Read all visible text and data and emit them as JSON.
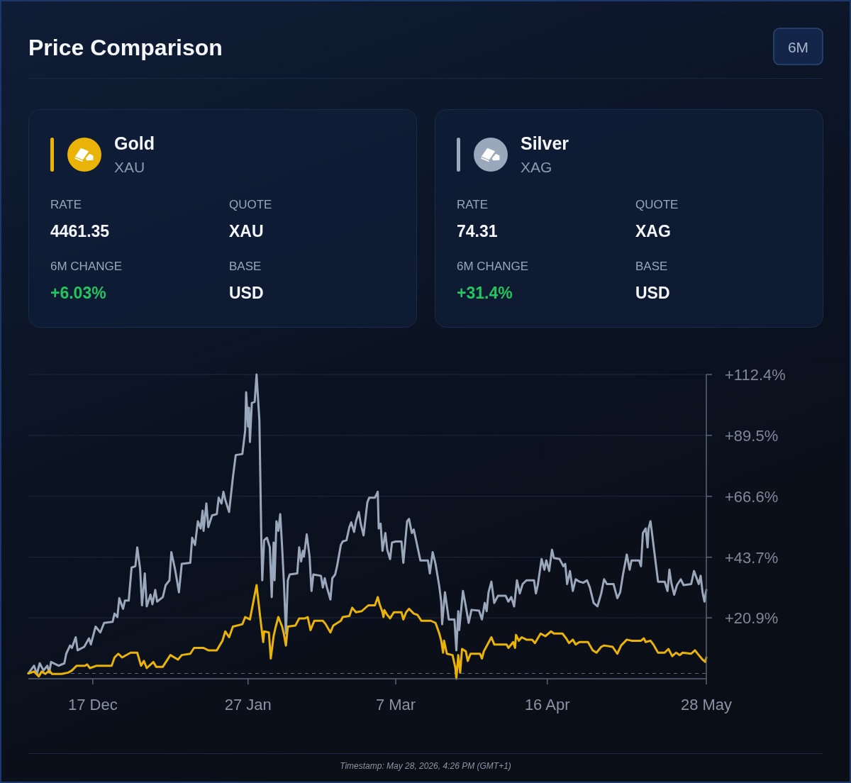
{
  "chart_data": {
    "type": "line",
    "title": "Price Comparison",
    "annotations": [
      "6M",
      "XAU",
      "RATE",
      "4461.35",
      "QUOTE",
      "XAU",
      "6M CHANGE",
      "+6.03%",
      "BASE",
      "USD",
      "XAG",
      "RATE",
      "74.31",
      "QUOTE",
      "XAG",
      "6M CHANGE",
      "+31.4%",
      "BASE",
      "USD",
      "Timestamp: May 28, 2026, 4:26 PM (GMT+1)"
    ],
    "xlim": [
      "2025-11-30",
      "2026-05-28"
    ],
    "xticks": [
      {
        "value": "2025-12-17",
        "label": "17 Dec"
      },
      {
        "value": "2026-01-27",
        "label": "27 Jan"
      },
      {
        "value": "2026-03-07",
        "label": "7 Mar"
      },
      {
        "value": "2026-04-16",
        "label": "16 Apr"
      },
      {
        "value": "2026-05-28",
        "label": "28 May"
      }
    ],
    "ylim": [
      -2.0,
      112.4
    ],
    "yticks": [
      {
        "value": 20.9,
        "label": "+20.9%"
      },
      {
        "value": 43.7,
        "label": "+43.7%"
      },
      {
        "value": 66.6,
        "label": "+66.6%"
      },
      {
        "value": 89.5,
        "label": "+89.5%"
      },
      {
        "value": 112.4,
        "label": "+112.4%"
      }
    ],
    "grid": "y",
    "legend": "top",
    "ref_lines": [
      {
        "axis": "y",
        "value": 0,
        "color": "#5d6678",
        "line_style": "dashed"
      }
    ],
    "series": [
      {
        "name": "Gold",
        "color": "#eab308",
        "x": [
          "2025-11-30",
          "2025-12-01T12:00",
          "2025-12-02T18:00",
          "2025-12-03T12:00",
          "2025-12-04T12:00",
          "2025-12-05T12:00",
          "2025-12-06T06:00",
          "2025-12-08T18:00",
          "2025-12-10T12:00",
          "2025-12-11T12:00",
          "2025-12-12T18:00",
          "2025-12-15",
          "2025-12-15T12:00",
          "2025-12-16T06:00",
          "2025-12-18",
          "2025-12-19T18:00",
          "2025-12-22",
          "2025-12-22T18:00",
          "2025-12-23T18:00",
          "2025-12-24T18:00",
          "2025-12-27",
          "2025-12-28T18:00",
          "2025-12-29T18:00",
          "2025-12-30T12:00",
          "2025-12-31T06:00",
          "2026-01-02",
          "2026-01-02T18:00",
          "2026-01-04T12:00",
          "2026-01-06T12:00",
          "2026-01-08T12:00",
          "2026-01-09T12:00",
          "2026-01-11T18:00",
          "2026-01-12T18:00",
          "2026-01-15T06:00",
          "2026-01-16T12:00",
          "2026-01-18T18:00",
          "2026-01-20T06:00",
          "2026-01-21",
          "2026-01-22",
          "2026-01-23",
          "2026-01-25T12:00",
          "2026-01-26T06:00",
          "2026-01-27T12:00",
          "2026-01-29T06:00",
          "2026-01-30T06:00",
          "2026-01-31",
          "2026-01-31T06:00",
          "2026-02-01T12:00",
          "2026-02-02",
          "2026-02-02T18:00",
          "2026-02-03T06:00",
          "2026-02-04",
          "2026-02-05",
          "2026-02-05T12:00",
          "2026-02-06",
          "2026-02-06T12:00",
          "2026-02-08T12:00",
          "2026-02-09T12:00",
          "2026-02-11",
          "2026-02-11T18:00",
          "2026-02-12T12:00",
          "2026-02-13T12:00",
          "2026-02-15T18:00",
          "2026-02-16T12:00",
          "2026-02-17T18:00",
          "2026-02-18T12:00",
          "2026-02-20T12:00",
          "2026-02-21",
          "2026-02-22T18:00",
          "2026-02-23T12:00",
          "2026-02-24T12:00",
          "2026-02-26",
          "2026-02-27T18:00",
          "2026-03-01T12:00",
          "2026-03-02T06:00",
          "2026-03-02T18:00",
          "2026-03-03T12:00",
          "2026-03-03T18:00",
          "2026-03-04",
          "2026-03-04T18:00",
          "2026-03-05T12:00",
          "2026-03-06T12:00",
          "2026-03-08T12:00",
          "2026-03-09",
          "2026-03-09T18:00",
          "2026-03-10T12:00",
          "2026-03-11T18:00",
          "2026-03-12T18:00",
          "2026-03-13T18:00",
          "2026-03-16T06:00",
          "2026-03-17T12:00",
          "2026-03-18T12:00",
          "2026-03-19",
          "2026-03-19T12:00",
          "2026-03-19T18:00",
          "2026-03-20T12:00",
          "2026-03-22",
          "2026-03-22T18:00",
          "2026-03-23",
          "2026-03-23T12:00",
          "2026-03-24",
          "2026-03-24T12:00",
          "2026-03-25T12:00",
          "2026-03-26",
          "2026-03-26T18:00",
          "2026-03-29T06:00",
          "2026-03-29T18:00",
          "2026-03-30T06:00",
          "2026-03-30T18:00",
          "2026-04-01T06:00",
          "2026-04-02",
          "2026-04-05T06:00",
          "2026-04-05T18:00",
          "2026-04-07",
          "2026-04-07T12:00",
          "2026-04-07T18:00",
          "2026-04-08T12:00",
          "2026-04-09T06:00",
          "2026-04-10T12:00",
          "2026-04-12",
          "2026-04-12T18:00",
          "2026-04-14T06:00",
          "2026-04-15T12:00",
          "2026-04-17",
          "2026-04-17T18:00",
          "2026-04-20",
          "2026-04-21",
          "2026-04-21T18:00",
          "2026-04-22T18:00",
          "2026-04-23T12:00",
          "2026-04-24T12:00",
          "2026-04-26T18:00",
          "2026-04-28",
          "2026-04-29",
          "2026-04-30T06:00",
          "2026-05-01",
          "2026-05-03T06:00",
          "2026-05-04T12:00",
          "2026-05-05T12:00",
          "2026-05-07",
          "2026-05-08T06:00",
          "2026-05-10T18:00",
          "2026-05-11T12:00",
          "2026-05-12",
          "2026-05-13T06:00",
          "2026-05-14",
          "2026-05-15T06:00",
          "2026-05-17",
          "2026-05-18",
          "2026-05-19",
          "2026-05-20",
          "2026-05-21",
          "2026-05-21T18:00",
          "2026-05-24",
          "2026-05-25",
          "2026-05-26",
          "2026-05-27",
          "2026-05-27T18:00",
          "2026-05-28"
        ],
        "values": [
          0.0,
          0.7,
          -1.1,
          0.7,
          -0.2,
          1.1,
          -0.2,
          -0.2,
          0.3,
          1.1,
          2.9,
          2.9,
          3.4,
          2.0,
          2.9,
          2.9,
          2.9,
          6.0,
          7.4,
          6.0,
          7.8,
          7.8,
          2.9,
          4.7,
          2.0,
          4.3,
          2.5,
          2.5,
          6.9,
          5.2,
          6.9,
          7.4,
          9.6,
          9.6,
          8.7,
          8.7,
          12.3,
          15.8,
          13.6,
          17.6,
          18.5,
          21.2,
          20.3,
          33.2,
          20.7,
          11.8,
          15.8,
          15.4,
          5.6,
          14.0,
          17.2,
          21.2,
          17.6,
          14.5,
          10.5,
          17.6,
          18.0,
          20.7,
          20.7,
          21.2,
          16.3,
          19.8,
          19.8,
          18.5,
          15.4,
          18.0,
          19.8,
          21.2,
          21.6,
          24.7,
          23.0,
          23.4,
          25.6,
          25.6,
          28.7,
          26.0,
          23.0,
          21.2,
          23.8,
          22.0,
          20.7,
          23.0,
          23.0,
          20.3,
          23.0,
          24.3,
          22.5,
          22.0,
          19.8,
          19.8,
          19.0,
          15.0,
          12.3,
          7.8,
          12.3,
          7.4,
          6.9,
          2.0,
          -2.0,
          6.9,
          0.3,
          9.2,
          8.3,
          4.7,
          7.4,
          7.4,
          5.6,
          8.3,
          9.6,
          13.6,
          10.9,
          10.9,
          9.6,
          11.8,
          9.6,
          14.5,
          12.3,
          13.6,
          12.7,
          12.7,
          11.4,
          15.0,
          14.0,
          15.8,
          15.0,
          15.0,
          13.2,
          11.4,
          12.7,
          10.9,
          11.8,
          11.8,
          8.7,
          7.8,
          10.0,
          10.5,
          10.0,
          7.4,
          10.5,
          12.7,
          12.3,
          12.3,
          13.2,
          11.8,
          12.3,
          10.9,
          7.8,
          7.8,
          9.2,
          6.5,
          7.8,
          6.9,
          7.8,
          7.4,
          8.7,
          6.9,
          5.2,
          4.3,
          6.0
        ]
      },
      {
        "name": "Silver",
        "color": "#9ba8bb",
        "x": [
          "2025-11-30",
          "2025-12-01T12:00",
          "2025-12-02T06:00",
          "2025-12-03",
          "2025-12-04",
          "2025-12-05",
          "2025-12-05T12:00",
          "2025-12-06",
          "2025-12-08",
          "2025-12-09T12:00",
          "2025-12-10",
          "2025-12-11",
          "2025-12-11T12:00",
          "2025-12-12T12:00",
          "2025-12-13",
          "2025-12-14T18:00",
          "2025-12-16",
          "2025-12-16T12:00",
          "2025-12-17T18:00",
          "2025-12-19",
          "2025-12-20",
          "2025-12-22T06:00",
          "2025-12-22T18:00",
          "2025-12-23T12:00",
          "2025-12-24",
          "2025-12-25",
          "2025-12-25T12:00",
          "2025-12-26T12:00",
          "2025-12-27T06:00",
          "2025-12-28T06:00",
          "2025-12-28T18:00",
          "2025-12-29T12:00",
          "2025-12-30",
          "2025-12-30T18:00",
          "2025-12-31T06:00",
          "2026-01-01T06:00",
          "2026-01-01T18:00",
          "2026-01-02T12:00",
          "2026-01-03",
          "2026-01-04T12:00",
          "2026-01-05T06:00",
          "2026-01-06T06:00",
          "2026-01-06T18:00",
          "2026-01-07T18:00",
          "2026-01-08T18:00",
          "2026-01-09T12:00",
          "2026-01-11T18:00",
          "2026-01-12T06:00",
          "2026-01-13",
          "2026-01-13T18:00",
          "2026-01-14T12:00",
          "2026-01-15",
          "2026-01-15T06:00",
          "2026-01-16",
          "2026-01-16T12:00",
          "2026-01-17T12:00",
          "2026-01-18T18:00",
          "2026-01-19T06:00",
          "2026-01-20",
          "2026-01-20T12:00",
          "2026-01-21",
          "2026-01-22",
          "2026-01-23",
          "2026-01-23T18:00",
          "2026-01-25T12:00",
          "2026-01-26T06:00",
          "2026-01-26T12:00",
          "2026-01-27",
          "2026-01-27T06:00",
          "2026-01-27T12:00",
          "2026-01-28",
          "2026-01-28T18:00",
          "2026-01-29T06:00",
          "2026-01-30",
          "2026-01-30T12:00",
          "2026-01-30T18:00",
          "2026-01-31T06:00",
          "2026-02-01",
          "2026-02-01T18:00",
          "2026-02-02T06:00",
          "2026-02-02T18:00",
          "2026-02-03",
          "2026-02-03T12:00",
          "2026-02-04",
          "2026-02-04T12:00",
          "2026-02-05",
          "2026-02-05T12:00",
          "2026-02-06",
          "2026-02-06T12:00",
          "2026-02-07",
          "2026-02-09",
          "2026-02-09T12:00",
          "2026-02-10",
          "2026-02-10T12:00",
          "2026-02-10T18:00",
          "2026-02-11T12:00",
          "2026-02-12T06:00",
          "2026-02-12T18:00",
          "2026-02-13T06:00",
          "2026-02-15T06:00",
          "2026-02-15T18:00",
          "2026-02-16T06:00",
          "2026-02-16T18:00",
          "2026-02-17T18:00",
          "2026-02-18T06:00",
          "2026-02-19",
          "2026-02-19T12:00",
          "2026-02-20T12:00",
          "2026-02-21",
          "2026-02-22",
          "2026-02-22T18:00",
          "2026-02-23T06:00",
          "2026-02-24",
          "2026-02-24T12:00",
          "2026-02-25T06:00",
          "2026-02-25T18:00",
          "2026-02-26T12:00",
          "2026-02-27T12:00",
          "2026-02-28",
          "2026-03-01T12:00",
          "2026-03-02T06:00",
          "2026-03-02T12:00",
          "2026-03-03",
          "2026-03-03T12:00",
          "2026-03-04T06:00",
          "2026-03-04T18:00",
          "2026-03-05T12:00",
          "2026-03-06",
          "2026-03-07",
          "2026-03-08T12:00",
          "2026-03-09",
          "2026-03-10",
          "2026-03-10T12:00",
          "2026-03-11T06:00",
          "2026-03-11T18:00",
          "2026-03-12T12:00",
          "2026-03-13T12:00",
          "2026-03-15T12:00",
          "2026-03-16",
          "2026-03-16T18:00",
          "2026-03-17T12:00",
          "2026-03-18T12:00",
          "2026-03-19",
          "2026-03-19T06:00",
          "2026-03-20",
          "2026-03-21",
          "2026-03-22T12:00",
          "2026-03-23",
          "2026-03-23T12:00",
          "2026-03-23T18:00",
          "2026-03-24T18:00",
          "2026-03-25T12:00",
          "2026-03-26T06:00",
          "2026-03-27",
          "2026-03-29",
          "2026-03-29T18:00",
          "2026-03-30T12:00",
          "2026-03-31",
          "2026-03-31T12:00",
          "2026-04-01T06:00",
          "2026-04-02",
          "2026-04-03",
          "2026-04-05",
          "2026-04-05T18:00",
          "2026-04-06T12:00",
          "2026-04-07T06:00",
          "2026-04-08",
          "2026-04-08T18:00",
          "2026-04-09T12:00",
          "2026-04-10T12:00",
          "2026-04-12T12:00",
          "2026-04-13",
          "2026-04-13T12:00",
          "2026-04-14T12:00",
          "2026-04-15T06:00",
          "2026-04-15T18:00",
          "2026-04-16T12:00",
          "2026-04-17T06:00",
          "2026-04-17T18:00",
          "2026-04-19T06:00",
          "2026-04-20T06:00",
          "2026-04-20T18:00",
          "2026-04-21T06:00",
          "2026-04-22",
          "2026-04-22T18:00",
          "2026-04-23T12:00",
          "2026-04-24T12:00",
          "2026-04-25T12:00",
          "2026-04-26T12:00",
          "2026-04-27T06:00",
          "2026-04-28T06:00",
          "2026-04-29T06:00",
          "2026-04-30T06:00",
          "2026-05-01",
          "2026-05-01T18:00",
          "2026-05-03T12:00",
          "2026-05-04T12:00",
          "2026-05-05T06:00",
          "2026-05-06",
          "2026-05-07",
          "2026-05-07T18:00",
          "2026-05-08T06:00",
          "2026-05-10T06:00",
          "2026-05-10T18:00",
          "2026-05-11T06:00",
          "2026-05-12",
          "2026-05-12T12:00",
          "2026-05-12T18:00",
          "2026-05-13T06:00",
          "2026-05-13T12:00",
          "2026-05-15T06:00",
          "2026-05-17",
          "2026-05-17T18:00",
          "2026-05-18T06:00",
          "2026-05-18T18:00",
          "2026-05-19T12:00",
          "2026-05-20T06:00",
          "2026-05-21T06:00",
          "2026-05-22",
          "2026-05-24",
          "2026-05-24T18:00",
          "2026-05-26",
          "2026-05-26T12:00",
          "2026-05-27",
          "2026-05-27T12:00",
          "2026-05-28"
        ],
        "values": [
          0.0,
          2.9,
          -0.2,
          3.8,
          1.1,
          2.9,
          0.3,
          4.3,
          2.9,
          3.8,
          7.4,
          10.5,
          9.6,
          13.6,
          8.7,
          10.0,
          13.2,
          10.9,
          17.6,
          15.4,
          19.0,
          19.4,
          22.5,
          21.2,
          28.3,
          24.3,
          27.4,
          27.4,
          39.8,
          40.3,
          47.4,
          39.4,
          25.6,
          37.6,
          25.2,
          29.6,
          26.0,
          31.4,
          27.0,
          28.7,
          33.2,
          35.0,
          45.6,
          39.0,
          30.5,
          41.2,
          41.6,
          51.0,
          48.3,
          57.2,
          54.5,
          61.2,
          53.6,
          63.9,
          55.0,
          59.4,
          59.9,
          66.1,
          63.9,
          68.3,
          65.2,
          60.7,
          73.7,
          82.1,
          82.5,
          91.4,
          105.7,
          92.8,
          99.9,
          87.0,
          101.7,
          102.1,
          112.4,
          95.0,
          51.0,
          35.0,
          50.1,
          51.0,
          47.4,
          28.7,
          49.2,
          35.0,
          57.2,
          53.6,
          59.9,
          47.4,
          33.2,
          15.0,
          35.0,
          37.2,
          37.6,
          47.4,
          42.1,
          46.1,
          43.9,
          52.3,
          43.9,
          31.0,
          37.2,
          36.7,
          32.3,
          35.8,
          32.7,
          27.8,
          35.8,
          37.2,
          40.3,
          48.3,
          49.6,
          50.1,
          55.0,
          56.8,
          53.2,
          57.2,
          60.7,
          56.3,
          51.9,
          64.3,
          66.1,
          66.1,
          68.3,
          54.5,
          56.3,
          46.1,
          52.8,
          46.5,
          43.0,
          49.2,
          49.6,
          49.6,
          41.6,
          57.2,
          58.1,
          52.8,
          54.1,
          49.2,
          42.5,
          42.5,
          37.6,
          45.6,
          41.2,
          32.7,
          27.0,
          18.5,
          30.5,
          20.3,
          20.3,
          8.7,
          23.4,
          16.3,
          31.0,
          25.2,
          19.0,
          23.9,
          23.6,
          20.3,
          26.5,
          23.4,
          30.5,
          34.5,
          26.5,
          29.2,
          29.2,
          27.0,
          28.7,
          25.2,
          35.0,
          30.1,
          33.6,
          35.0,
          35.0,
          30.1,
          33.2,
          43.0,
          39.0,
          42.5,
          38.5,
          46.5,
          43.4,
          43.0,
          40.3,
          41.2,
          33.6,
          38.5,
          31.0,
          35.4,
          34.5,
          34.1,
          35.0,
          32.3,
          26.5,
          25.2,
          30.1,
          35.4,
          33.6,
          33.6,
          28.3,
          30.5,
          37.2,
          44.7,
          39.0,
          42.5,
          42.5,
          40.3,
          52.8,
          54.5,
          47.4,
          54.5,
          57.2,
          54.5,
          34.5,
          34.5,
          31.0,
          39.0,
          34.1,
          29.6,
          33.2,
          35.4,
          33.2,
          33.6,
          38.5,
          33.6,
          36.7,
          30.5,
          27.0,
          31.4
        ]
      }
    ]
  }
}
